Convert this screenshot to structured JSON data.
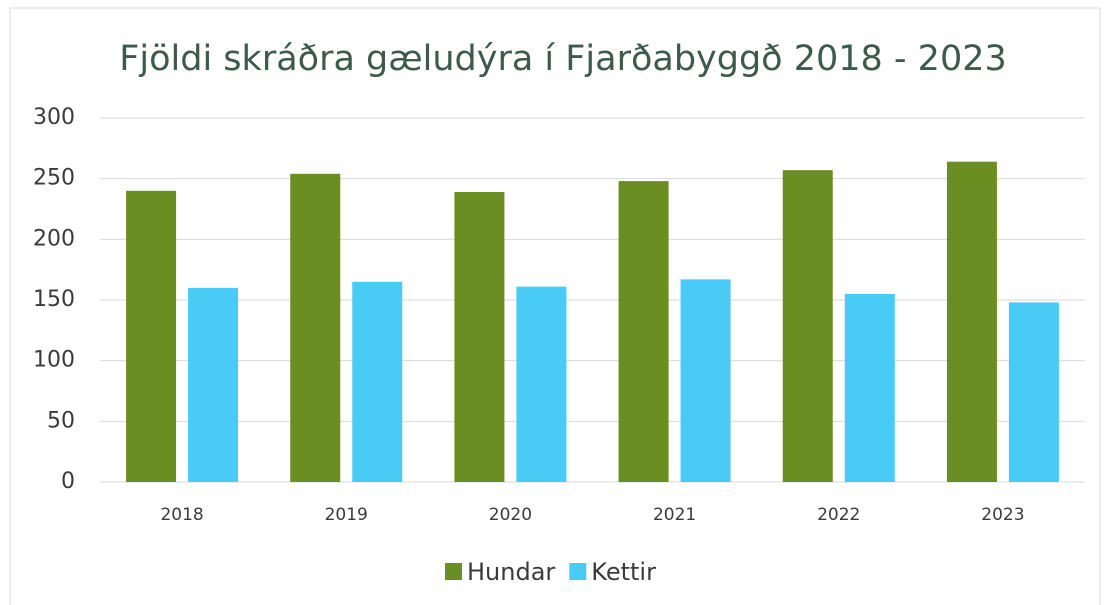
{
  "chart_data": {
    "type": "bar",
    "title": "Fjöldi skráðra gæludýra í Fjarðabyggð 2018 - 2023",
    "categories": [
      "2018",
      "2019",
      "2020",
      "2021",
      "2022",
      "2023"
    ],
    "series": [
      {
        "name": "Hundar",
        "color": "#6b8e23",
        "values": [
          240,
          254,
          239,
          248,
          257,
          264
        ]
      },
      {
        "name": "Kettir",
        "color": "#48cbf5",
        "values": [
          160,
          165,
          161,
          167,
          155,
          148
        ]
      }
    ],
    "ylim": [
      0,
      300
    ],
    "yticks": [
      0,
      50,
      100,
      150,
      200,
      250,
      300
    ],
    "grid": true,
    "legend": "bottom"
  }
}
